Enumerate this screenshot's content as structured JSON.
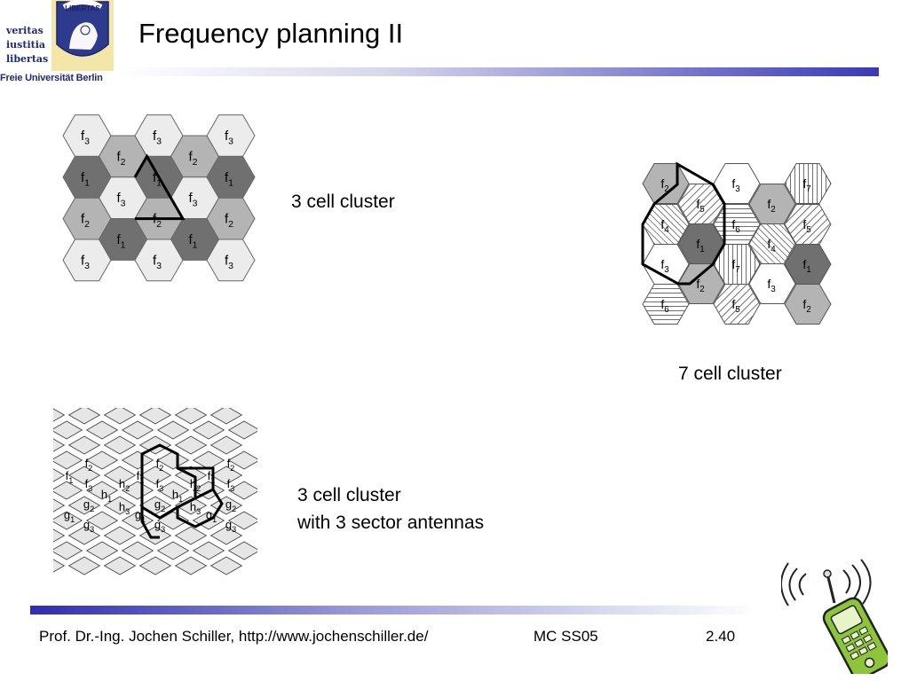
{
  "header": {
    "title": "Frequency planning II",
    "logo": {
      "words": [
        "veritas",
        "iustitia",
        "libertas"
      ],
      "seal_text": "LIBERTAS",
      "university": "Freie Universität Berlin"
    }
  },
  "colors": {
    "accent": "#2e2eb0",
    "dark_cell": "#707070",
    "mid_cell": "#b4b4b4",
    "light_cell": "#ececec",
    "phone": "#8cc43c"
  },
  "diagrams": {
    "three_cell": {
      "label": "3 cell cluster",
      "rows": [
        [
          "f3",
          "f2",
          "f3",
          "f2",
          "f3"
        ],
        [
          "f1",
          "f3",
          "f1",
          "f3",
          "f1"
        ],
        [
          "f2",
          "f1",
          "f2",
          "f1",
          "f2"
        ],
        [
          "f3",
          "",
          "f3",
          "",
          "f3"
        ]
      ]
    },
    "seven_cell": {
      "label": "7 cell cluster"
    },
    "sector": {
      "label_line1": "3 cell cluster",
      "label_line2": "with 3 sector antennas"
    }
  },
  "footer": {
    "author": "Prof. Dr.-Ing. Jochen Schiller, http://www.jochenschiller.de/",
    "course": "MC SS05",
    "page": "2.40"
  }
}
